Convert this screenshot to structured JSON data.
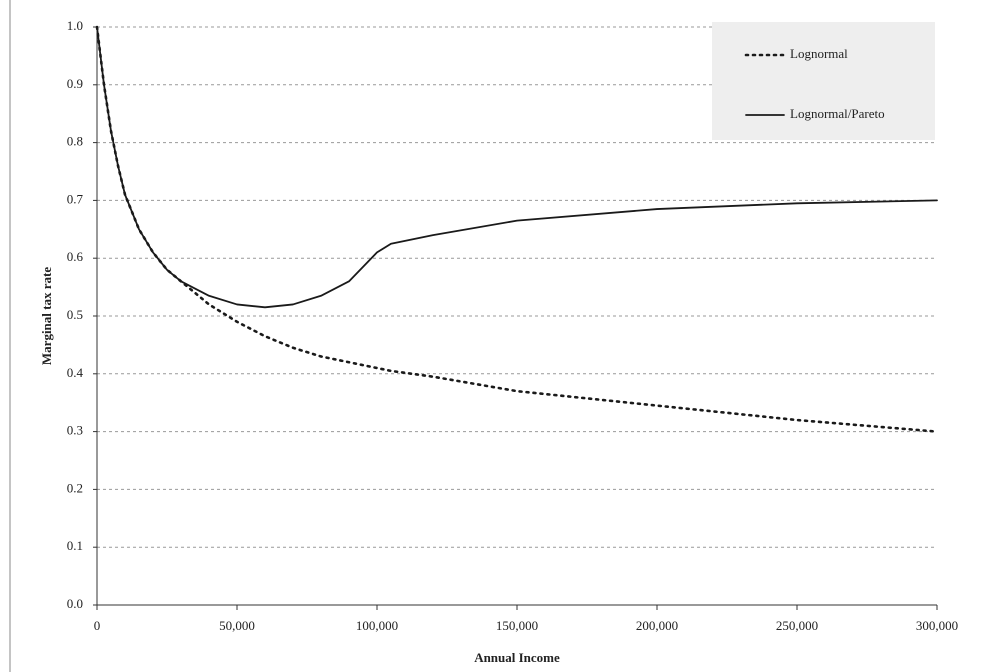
{
  "chart_data": {
    "type": "line",
    "y_label": "Marginal tax rate",
    "x_label": "Annual Income",
    "x": [
      0,
      2500,
      5000,
      7500,
      10000,
      15000,
      20000,
      25000,
      30000,
      40000,
      50000,
      60000,
      70000,
      80000,
      90000,
      100000,
      105000,
      120000,
      150000,
      200000,
      250000,
      300000
    ],
    "series": [
      {
        "name": "Lognormal",
        "color": "#1a1a1a",
        "style": "dotted",
        "values": [
          1.0,
          0.9,
          0.82,
          0.76,
          0.71,
          0.65,
          0.61,
          0.58,
          0.56,
          0.52,
          0.49,
          0.465,
          0.445,
          0.43,
          0.42,
          0.41,
          0.405,
          0.395,
          0.37,
          0.345,
          0.32,
          0.3
        ]
      },
      {
        "name": "Lognormal/Pareto",
        "color": "#1a1a1a",
        "style": "solid",
        "values": [
          1.0,
          0.9,
          0.82,
          0.76,
          0.71,
          0.65,
          0.61,
          0.58,
          0.56,
          0.535,
          0.52,
          0.515,
          0.52,
          0.535,
          0.56,
          0.61,
          0.625,
          0.64,
          0.665,
          0.685,
          0.695,
          0.7
        ]
      }
    ],
    "xlim": [
      0,
      300000
    ],
    "xticks": [
      0,
      {
        "value": 50000,
        "label": "50,000"
      },
      {
        "value": 100000,
        "label": "100,000"
      },
      {
        "value": 150000,
        "label": "150,000"
      },
      {
        "value": 200000,
        "label": "200,000"
      },
      {
        "value": 250000,
        "label": "250,000"
      },
      {
        "value": 300000,
        "label": "300,000"
      }
    ],
    "ylim": [
      0,
      1
    ],
    "yticks": [
      {
        "value": 0,
        "label": "0.0"
      },
      {
        "value": 0.1,
        "label": "0.1"
      },
      {
        "value": 0.2,
        "label": "0.2"
      },
      {
        "value": 0.3,
        "label": "0.3"
      },
      {
        "value": 0.4,
        "label": "0.4"
      },
      {
        "value": 0.5,
        "label": "0.5"
      },
      {
        "value": 0.6,
        "label": "0.6"
      },
      {
        "value": 0.7,
        "label": "0.7"
      },
      {
        "value": 0.8,
        "label": "0.8"
      },
      {
        "value": 0.9,
        "label": "0.9"
      },
      {
        "value": 1,
        "label": "1.0"
      }
    ],
    "grid": true,
    "legend": "top-right"
  }
}
